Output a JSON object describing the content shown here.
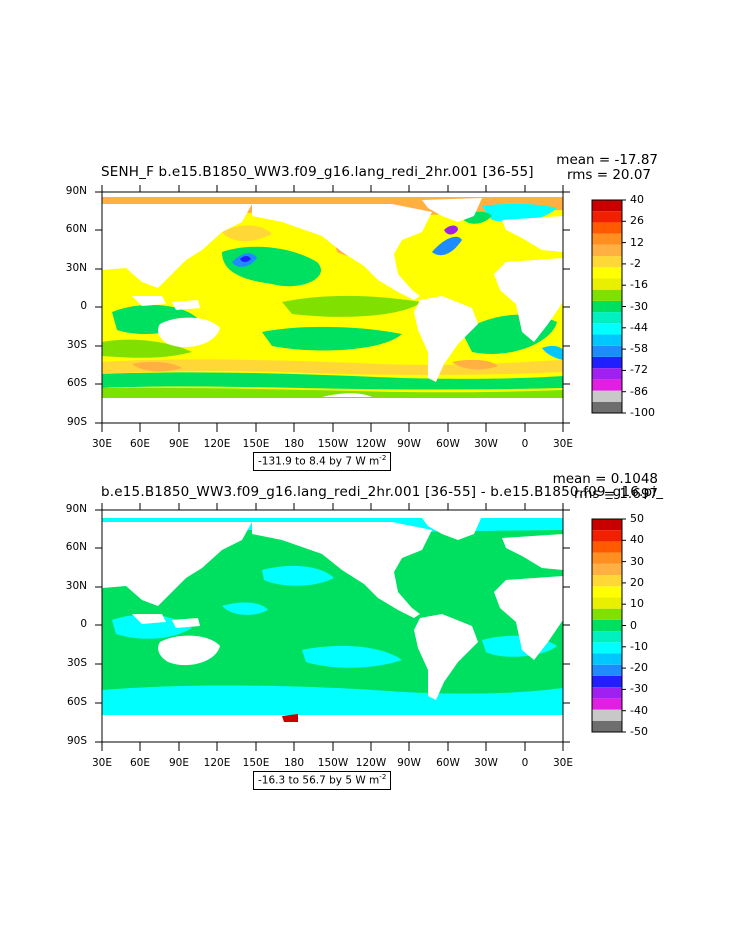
{
  "panel1": {
    "title": "SENH_F  b.e15.B1850_WW3.f09_g16.lang_redi_2hr.001  [36-55]",
    "mean": "mean = -17.87",
    "rms": "rms = 20.07",
    "range_text": "-131.9 to 8.4 by 7  W m",
    "range_sup": "-2",
    "colorbar_labels": [
      "40",
      "26",
      "12",
      "-2",
      "-16",
      "-30",
      "-44",
      "-58",
      "-72",
      "-86",
      "-100"
    ],
    "colors": [
      "#6e6e6e",
      "#c8c8c8",
      "#e11ee1",
      "#a020f0",
      "#2020ff",
      "#1e8cff",
      "#00c8ff",
      "#00ffff",
      "#00f0c0",
      "#00e060",
      "#80e000",
      "#e8f000",
      "#ffff00",
      "#ffd838",
      "#ffb040",
      "#ff9020",
      "#ff5a00",
      "#f02000",
      "#c80000"
    ]
  },
  "panel2": {
    "title": "b.e15.B1850_WW3.f09_g16.lang_redi_2hr.001  [36-55]  -  b.e15.B1850.f09_g16.pi_",
    "mean": "mean = 0.1048",
    "rms": "rms = 1.697",
    "range_text": "-16.3 to 56.7 by 5  W m",
    "range_sup": "-2",
    "colorbar_labels": [
      "50",
      "40",
      "30",
      "20",
      "10",
      "0",
      "-10",
      "-20",
      "-30",
      "-40",
      "-50"
    ],
    "colors": [
      "#6e6e6e",
      "#c8c8c8",
      "#e11ee1",
      "#a020f0",
      "#2020ff",
      "#1e8cff",
      "#00c8ff",
      "#00ffff",
      "#00f0c0",
      "#00e060",
      "#80e000",
      "#e8f000",
      "#ffff00",
      "#ffd838",
      "#ffb040",
      "#ff9020",
      "#ff5a00",
      "#f02000",
      "#c80000"
    ]
  },
  "axes": {
    "lat_labels": [
      "90N",
      "60N",
      "30N",
      "0",
      "30S",
      "60S",
      "90S"
    ],
    "lon_labels": [
      "30E",
      "60E",
      "90E",
      "120E",
      "150E",
      "180",
      "150W",
      "120W",
      "90W",
      "60W",
      "30W",
      "0",
      "30E"
    ]
  }
}
